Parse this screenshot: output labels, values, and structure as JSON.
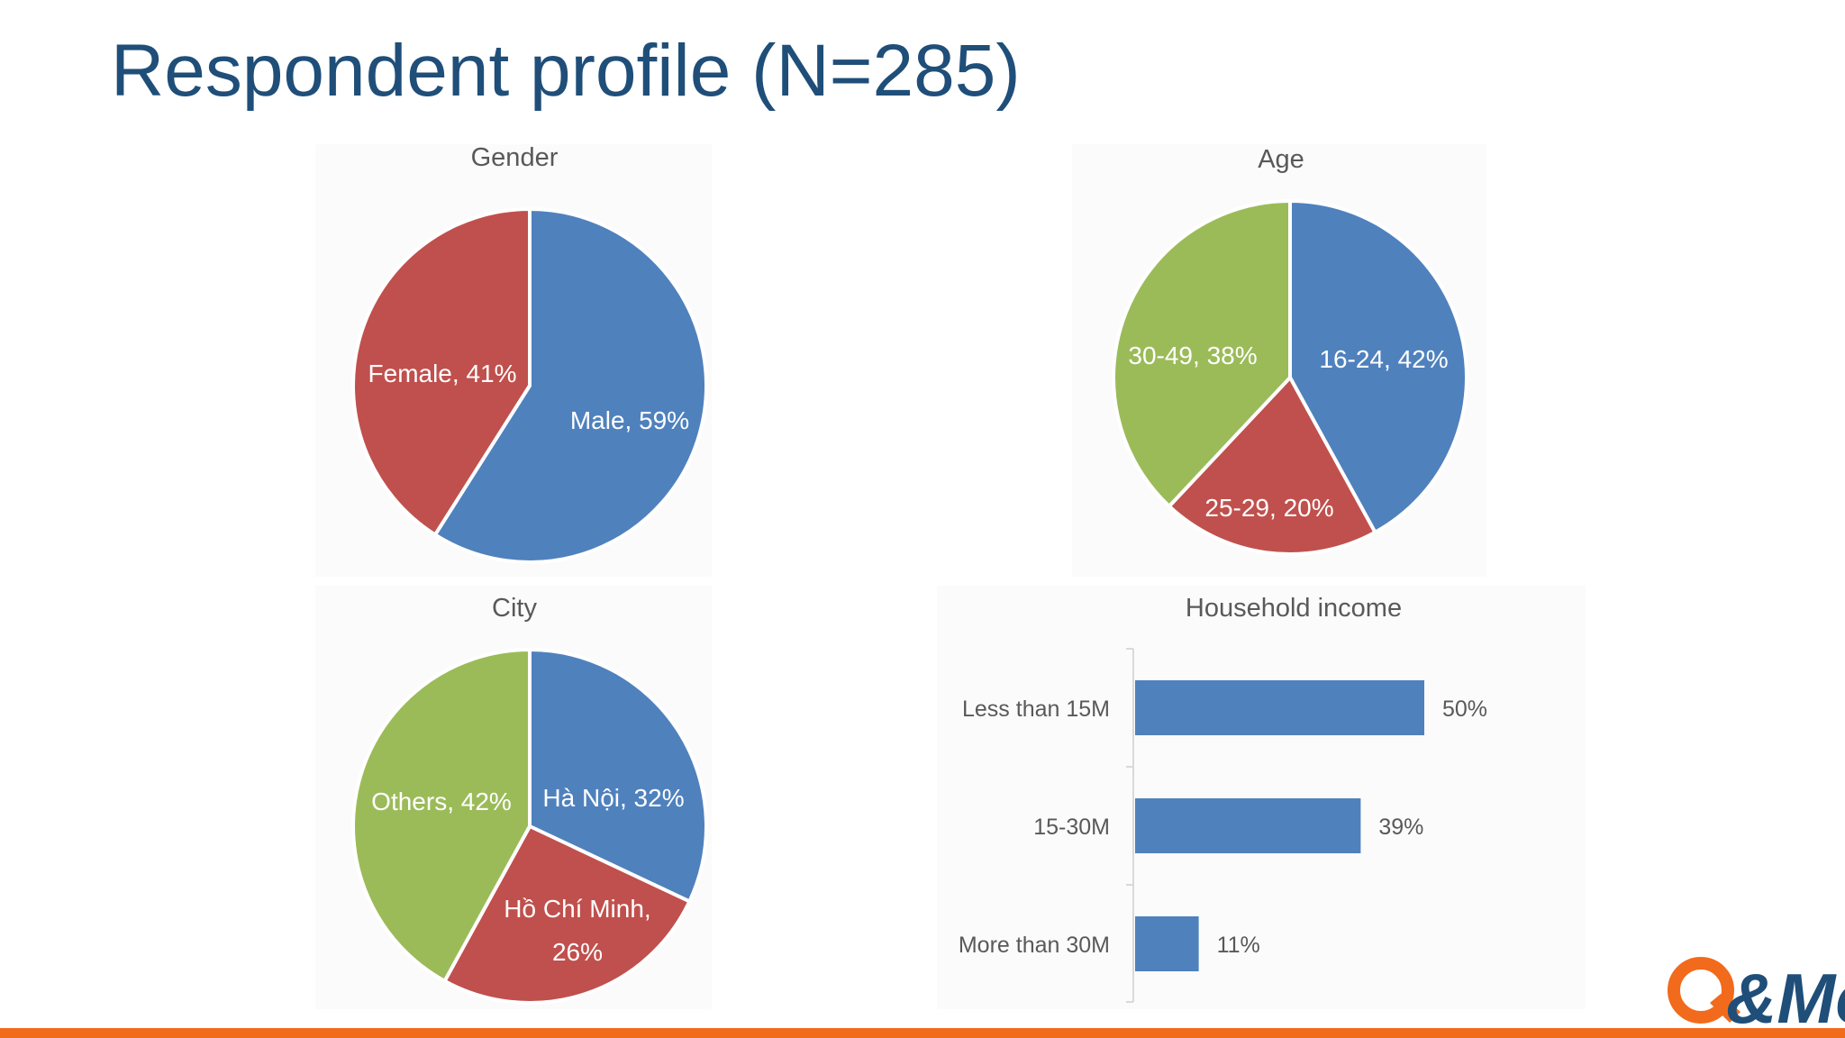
{
  "slide": {
    "title": "Respondent profile (N=285)"
  },
  "logo": {
    "text": "Q&Me",
    "icon": "qandme-logo",
    "color_q": "#f26a1b",
    "color_me": "#1f4e79"
  },
  "colors": {
    "blue": "#4f81bd",
    "red": "#c0504d",
    "green": "#9bbb59",
    "label": "#595959",
    "bottom_bar": "#f26a1b"
  },
  "chart_data": [
    {
      "type": "pie",
      "title": "Gender",
      "slices": [
        {
          "label": "Male, 59%",
          "value": 59,
          "color": "#4f81bd"
        },
        {
          "label": "Female, 41%",
          "value": 41,
          "color": "#c0504d"
        }
      ]
    },
    {
      "type": "pie",
      "title": "Age",
      "slices": [
        {
          "label": "16-24, 42%",
          "value": 42,
          "color": "#4f81bd"
        },
        {
          "label": "25-29, 20%",
          "value": 20,
          "color": "#c0504d"
        },
        {
          "label": "30-49, 38%",
          "value": 38,
          "color": "#9bbb59"
        }
      ]
    },
    {
      "type": "pie",
      "title": "City",
      "slices": [
        {
          "label": "Hà Nội, 32%",
          "value": 32,
          "color": "#4f81bd"
        },
        {
          "label_lines": [
            "Hồ Chí Minh,",
            "26%"
          ],
          "value": 26,
          "color": "#c0504d"
        },
        {
          "label": "Others, 42%",
          "value": 42,
          "color": "#9bbb59"
        }
      ]
    },
    {
      "type": "bar",
      "orientation": "horizontal",
      "title": "Household income",
      "categories": [
        "Less than 15M",
        "15-30M",
        "More than 30M"
      ],
      "values": [
        50,
        39,
        11
      ],
      "value_labels": [
        "50%",
        "39%",
        "11%"
      ],
      "color": "#4f81bd"
    }
  ]
}
